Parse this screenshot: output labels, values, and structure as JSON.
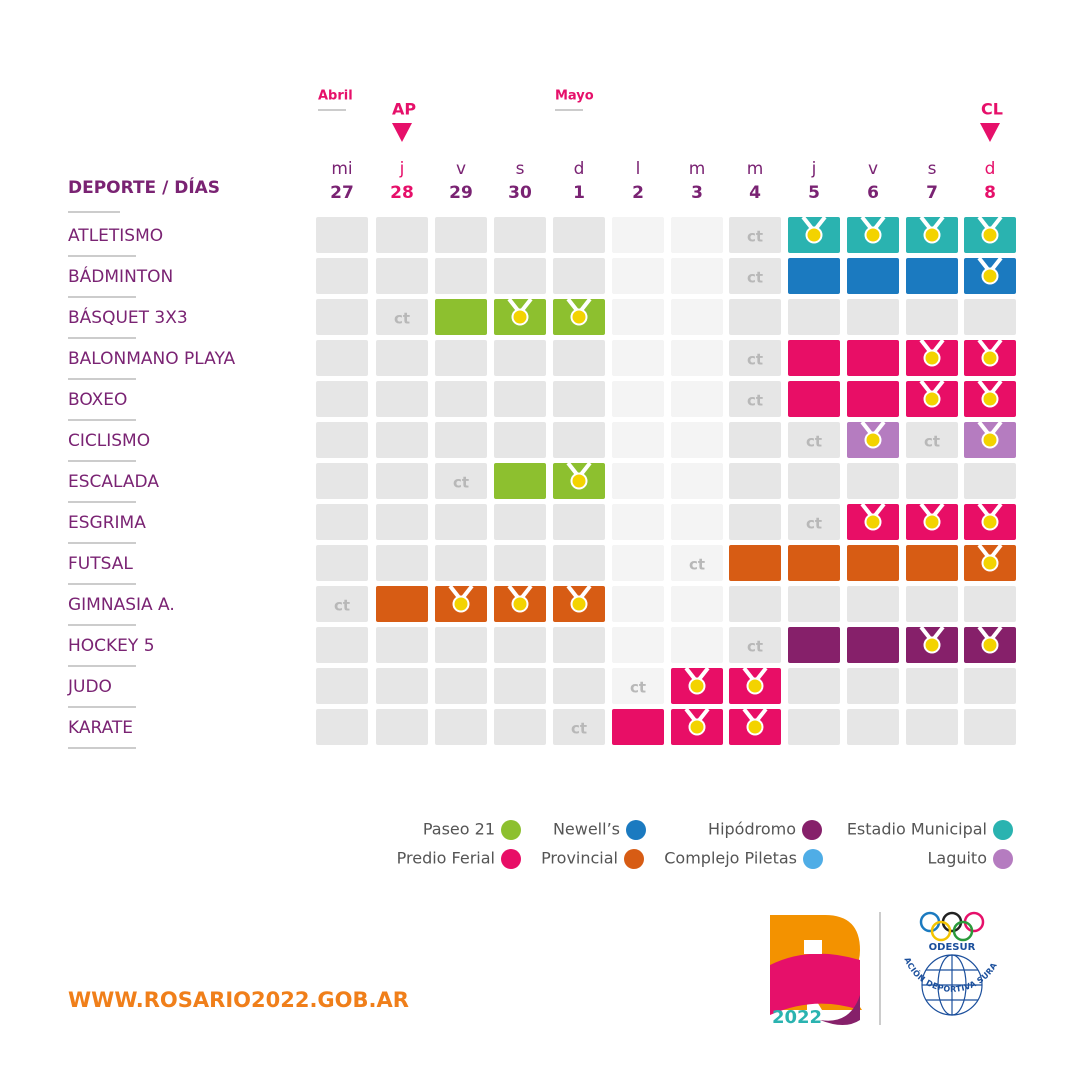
{
  "header": "DEPORTE / DÍAS",
  "months": [
    "Abril",
    "Mayo"
  ],
  "markers": [
    {
      "label": "AP",
      "day": 1
    },
    {
      "label": "CL",
      "day": 11
    }
  ],
  "days": [
    {
      "weekday": "mi",
      "date": "27"
    },
    {
      "weekday": "j",
      "date": "28"
    },
    {
      "weekday": "v",
      "date": "29"
    },
    {
      "weekday": "s",
      "date": "30"
    },
    {
      "weekday": "d",
      "date": "1"
    },
    {
      "weekday": "l",
      "date": "2"
    },
    {
      "weekday": "m",
      "date": "3"
    },
    {
      "weekday": "m",
      "date": "4"
    },
    {
      "weekday": "j",
      "date": "5"
    },
    {
      "weekday": "v",
      "date": "6"
    },
    {
      "weekday": "s",
      "date": "7"
    },
    {
      "weekday": "d",
      "date": "8"
    }
  ],
  "legend": [
    {
      "label": "Paseo 21",
      "color": "#8dc02f"
    },
    {
      "label": "Newell’s",
      "color": "#1b7ac0"
    },
    {
      "label": "Hipódromo",
      "color": "#86206a"
    },
    {
      "label": "Estadio Municipal",
      "color": "#2ab3b0"
    },
    {
      "label": "Predio Ferial",
      "color": "#e80e66"
    },
    {
      "label": "Provincial",
      "color": "#d75c14"
    },
    {
      "label": "Complejo Piletas",
      "color": "#4fade6"
    },
    {
      "label": "Laguito",
      "color": "#b57cc0"
    }
  ],
  "sports": [
    {
      "name": "ATLETISMO",
      "cells": [
        null,
        null,
        null,
        null,
        null,
        null,
        null,
        "ct",
        {
          "venue": 3,
          "medal": true
        },
        {
          "venue": 3,
          "medal": true
        },
        {
          "venue": 3,
          "medal": true
        },
        {
          "venue": 3,
          "medal": true
        }
      ]
    },
    {
      "name": "BÁDMINTON",
      "cells": [
        null,
        null,
        null,
        null,
        null,
        null,
        null,
        "ct",
        {
          "venue": 1,
          "medal": false
        },
        {
          "venue": 1,
          "medal": false
        },
        {
          "venue": 1,
          "medal": false
        },
        {
          "venue": 1,
          "medal": true
        }
      ]
    },
    {
      "name": "BÁSQUET 3X3",
      "cells": [
        null,
        "ct",
        {
          "venue": 0,
          "medal": false
        },
        {
          "venue": 0,
          "medal": true
        },
        {
          "venue": 0,
          "medal": true
        },
        null,
        null,
        null,
        null,
        null,
        null,
        null
      ]
    },
    {
      "name": "BALONMANO PLAYA",
      "cells": [
        null,
        null,
        null,
        null,
        null,
        null,
        null,
        "ct",
        {
          "venue": 4,
          "medal": false
        },
        {
          "venue": 4,
          "medal": false
        },
        {
          "venue": 4,
          "medal": true
        },
        {
          "venue": 4,
          "medal": true
        }
      ]
    },
    {
      "name": "BOXEO",
      "cells": [
        null,
        null,
        null,
        null,
        null,
        null,
        null,
        "ct",
        {
          "venue": 4,
          "medal": false
        },
        {
          "venue": 4,
          "medal": false
        },
        {
          "venue": 4,
          "medal": true
        },
        {
          "venue": 4,
          "medal": true
        }
      ]
    },
    {
      "name": "CICLISMO",
      "cells": [
        null,
        null,
        null,
        null,
        null,
        null,
        null,
        null,
        "ct",
        {
          "venue": 7,
          "medal": true
        },
        "ct",
        {
          "venue": 7,
          "medal": true
        }
      ]
    },
    {
      "name": "ESCALADA",
      "cells": [
        null,
        null,
        "ct",
        {
          "venue": 0,
          "medal": false
        },
        {
          "venue": 0,
          "medal": true
        },
        null,
        null,
        null,
        null,
        null,
        null,
        null
      ]
    },
    {
      "name": "ESGRIMA",
      "cells": [
        null,
        null,
        null,
        null,
        null,
        null,
        null,
        null,
        "ct",
        {
          "venue": 4,
          "medal": true
        },
        {
          "venue": 4,
          "medal": true
        },
        {
          "venue": 4,
          "medal": true
        }
      ]
    },
    {
      "name": "FUTSAL",
      "cells": [
        null,
        null,
        null,
        null,
        null,
        null,
        "ct",
        {
          "venue": 5,
          "medal": false
        },
        {
          "venue": 5,
          "medal": false
        },
        {
          "venue": 5,
          "medal": false
        },
        {
          "venue": 5,
          "medal": false
        },
        {
          "venue": 5,
          "medal": true
        }
      ]
    },
    {
      "name": "GIMNASIA A.",
      "cells": [
        "ct",
        {
          "venue": 5,
          "medal": false
        },
        {
          "venue": 5,
          "medal": true
        },
        {
          "venue": 5,
          "medal": true
        },
        {
          "venue": 5,
          "medal": true
        },
        null,
        null,
        null,
        null,
        null,
        null,
        null
      ]
    },
    {
      "name": "HOCKEY 5",
      "cells": [
        null,
        null,
        null,
        null,
        null,
        null,
        null,
        "ct",
        {
          "venue": 2,
          "medal": false
        },
        {
          "venue": 2,
          "medal": false
        },
        {
          "venue": 2,
          "medal": true
        },
        {
          "venue": 2,
          "medal": true
        }
      ]
    },
    {
      "name": "JUDO",
      "cells": [
        null,
        null,
        null,
        null,
        null,
        "ct",
        {
          "venue": 4,
          "medal": true
        },
        {
          "venue": 4,
          "medal": true
        },
        null,
        null,
        null,
        null
      ]
    },
    {
      "name": "KARATE",
      "cells": [
        null,
        null,
        null,
        null,
        "ct",
        {
          "venue": 4,
          "medal": false
        },
        {
          "venue": 4,
          "medal": true
        },
        {
          "venue": 4,
          "medal": true
        },
        null,
        null,
        null,
        null
      ]
    }
  ],
  "website": "WWW.ROSARIO2022.GOB.AR",
  "logo_year": "2022",
  "org_short": "ODESUR",
  "org_full": "ORGANIZACIÓN DEPORTIVA SURAMERICANA"
}
